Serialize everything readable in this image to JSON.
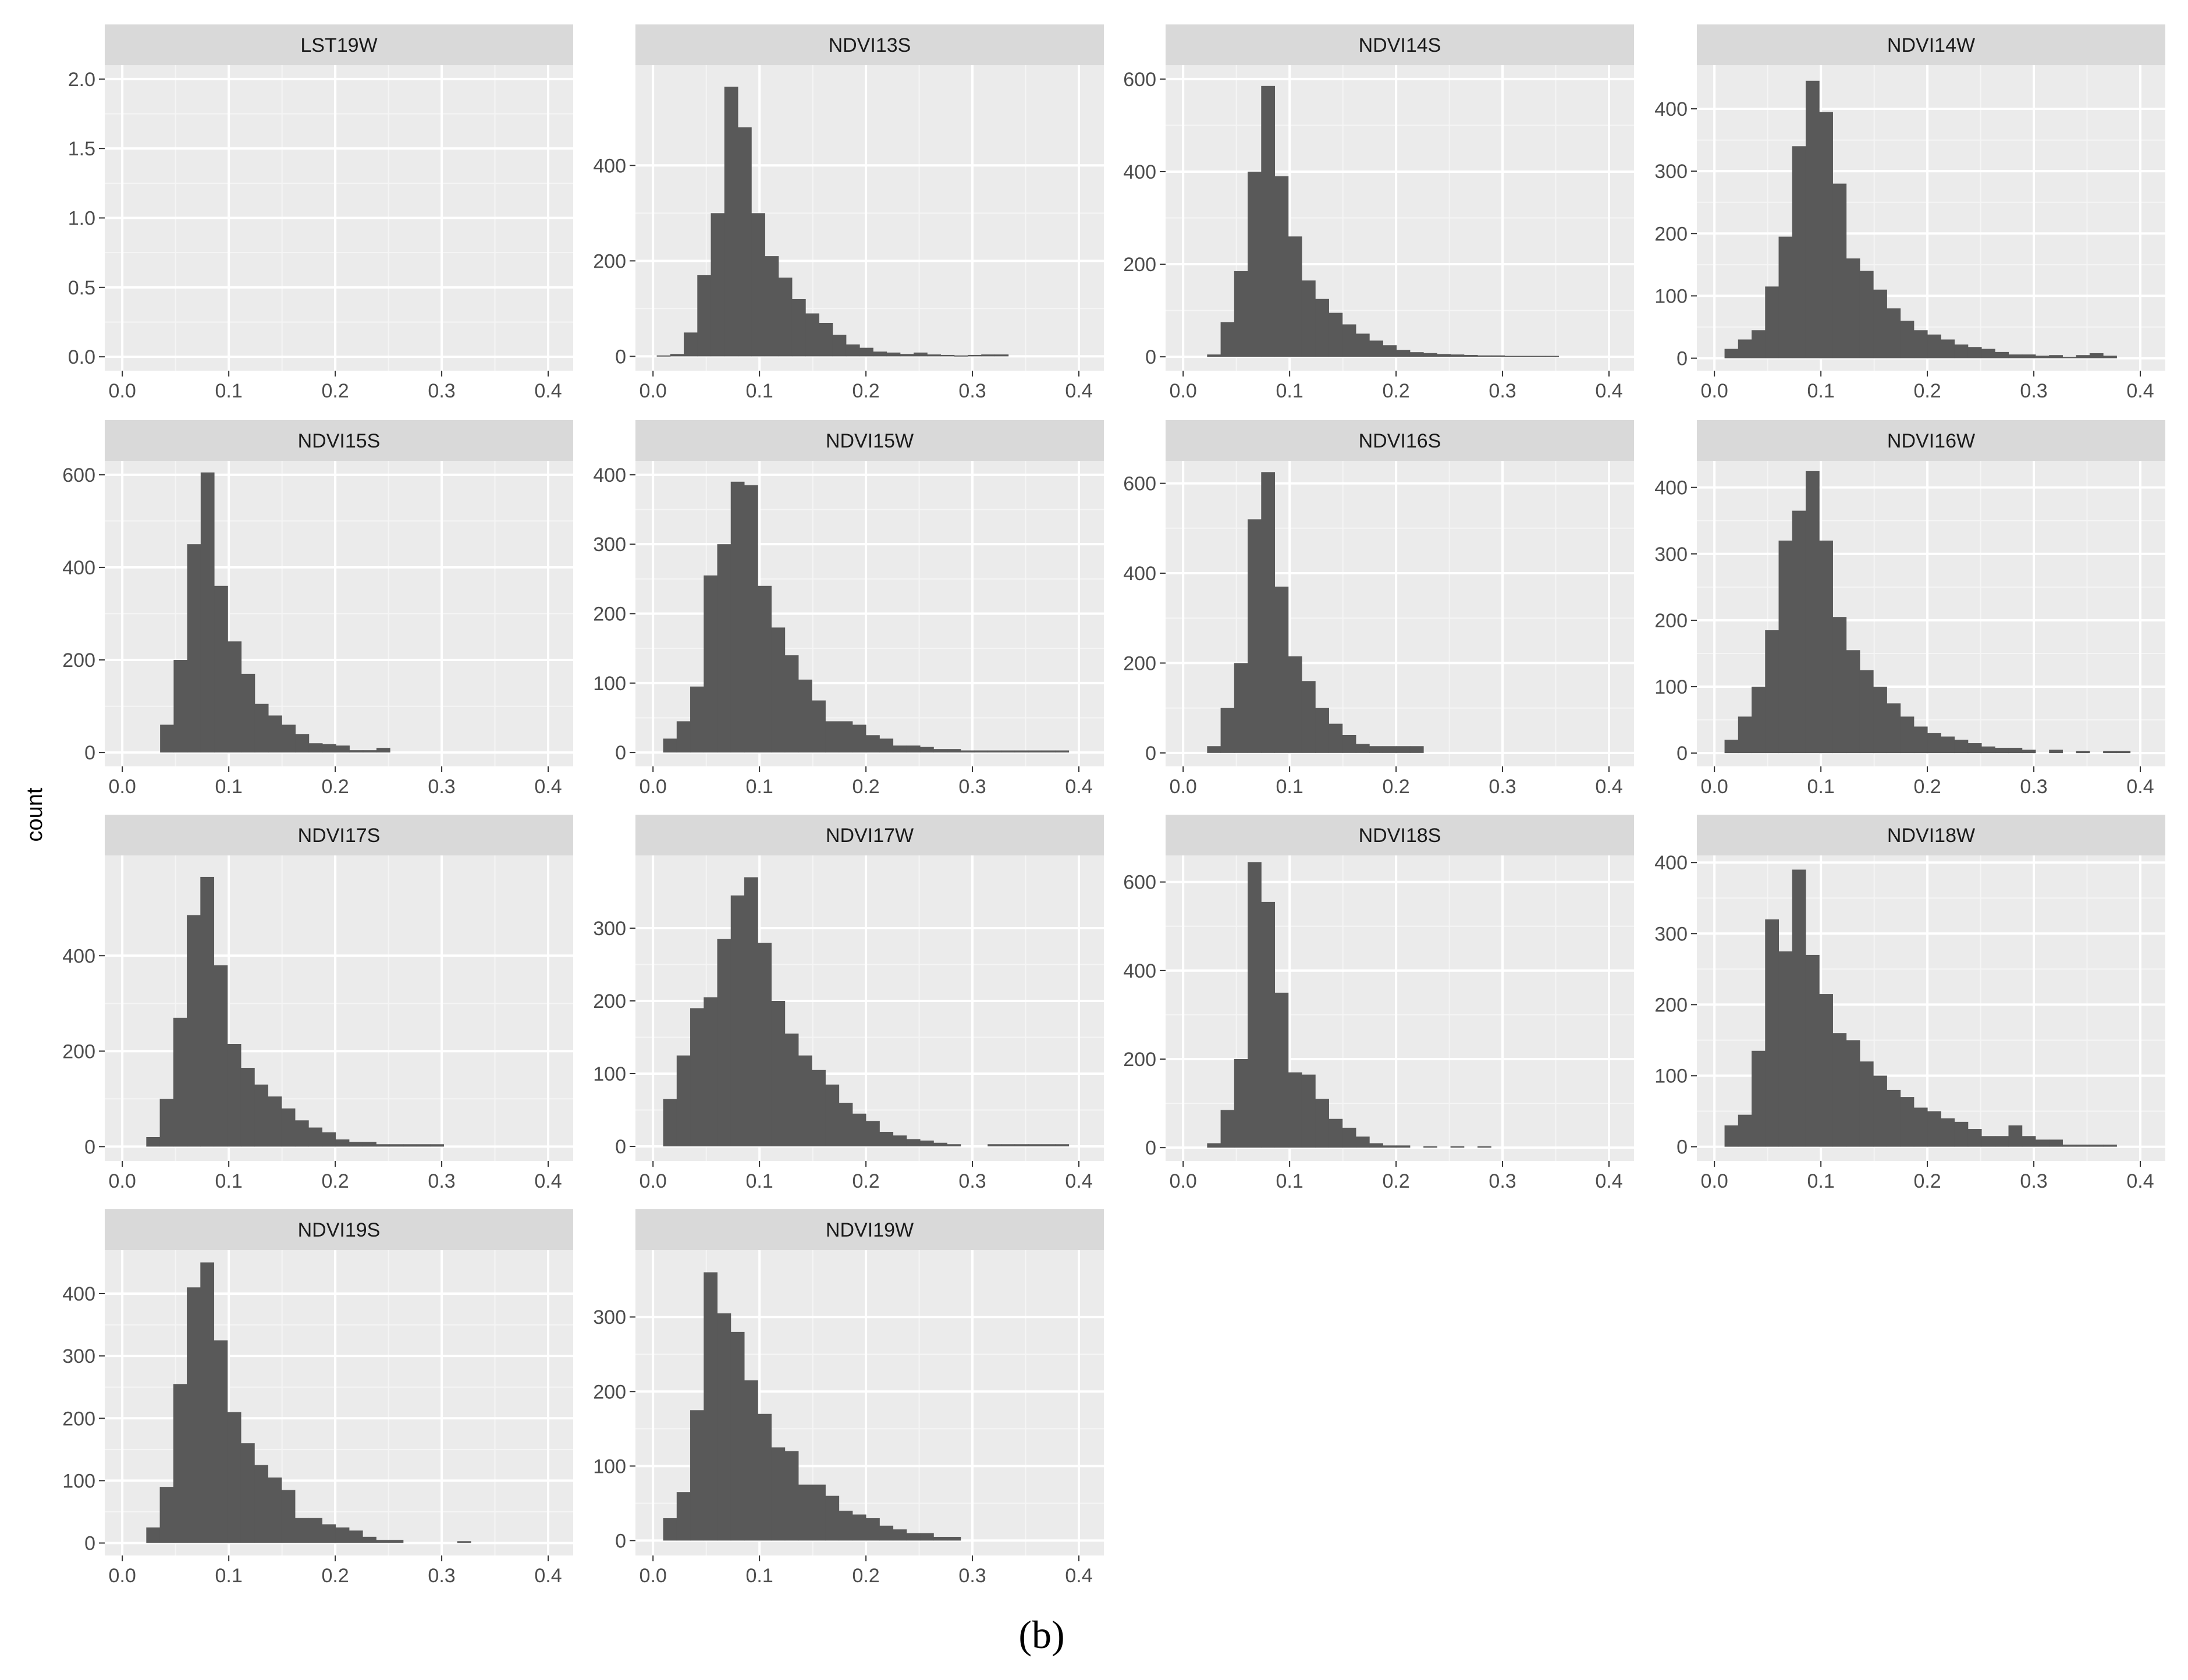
{
  "figure": {
    "caption": "(b)",
    "ylabel": "count"
  },
  "chart_data": [
    {
      "type": "bar",
      "title": "LST19W",
      "xlabel": "",
      "ylabel": "count",
      "x_ticks": [
        0.0,
        0.1,
        0.2,
        0.3,
        0.4
      ],
      "y_ticks": [
        0.0,
        0.5,
        1.0,
        1.5,
        2.0
      ],
      "ylim": [
        -0.1,
        2.1
      ],
      "bin_start": 0.0,
      "bin_width": 0.0127,
      "values": []
    },
    {
      "type": "bar",
      "title": "NDVI13S",
      "xlabel": "",
      "ylabel": "count",
      "x_ticks": [
        0.0,
        0.1,
        0.2,
        0.3,
        0.4
      ],
      "y_ticks": [
        0,
        200,
        400
      ],
      "ylim": [
        -30,
        610
      ],
      "bin_start": 0.0035,
      "bin_width": 0.0127,
      "values": [
        2,
        5,
        50,
        170,
        300,
        565,
        480,
        300,
        210,
        165,
        120,
        90,
        70,
        45,
        25,
        18,
        10,
        8,
        5,
        8,
        4,
        3,
        2,
        3,
        4,
        4
      ]
    },
    {
      "type": "bar",
      "title": "NDVI14S",
      "xlabel": "",
      "ylabel": "count",
      "x_ticks": [
        0.0,
        0.1,
        0.2,
        0.3,
        0.4
      ],
      "y_ticks": [
        0,
        200,
        400,
        600
      ],
      "ylim": [
        -30,
        630
      ],
      "bin_start": 0.0225,
      "bin_width": 0.0127,
      "values": [
        5,
        75,
        185,
        400,
        585,
        390,
        260,
        165,
        125,
        95,
        70,
        50,
        35,
        25,
        15,
        10,
        8,
        6,
        5,
        4,
        3,
        3,
        2,
        2,
        2,
        2
      ]
    },
    {
      "type": "bar",
      "title": "NDVI14W",
      "xlabel": "",
      "ylabel": "count",
      "x_ticks": [
        0.0,
        0.1,
        0.2,
        0.3,
        0.4
      ],
      "y_ticks": [
        0,
        100,
        200,
        300,
        400
      ],
      "ylim": [
        -20,
        470
      ],
      "bin_start": 0.0095,
      "bin_width": 0.0127,
      "values": [
        15,
        30,
        45,
        115,
        195,
        340,
        445,
        395,
        280,
        160,
        140,
        110,
        80,
        60,
        45,
        38,
        30,
        22,
        18,
        15,
        10,
        6,
        6,
        4,
        5,
        2,
        5,
        8,
        4
      ]
    },
    {
      "type": "bar",
      "title": "NDVI15S",
      "xlabel": "",
      "ylabel": "count",
      "x_ticks": [
        0.0,
        0.1,
        0.2,
        0.3,
        0.4
      ],
      "y_ticks": [
        0,
        200,
        400,
        600
      ],
      "ylim": [
        -30,
        630
      ],
      "bin_start": 0.0355,
      "bin_width": 0.0127,
      "values": [
        60,
        200,
        450,
        605,
        360,
        240,
        170,
        105,
        80,
        60,
        40,
        20,
        18,
        15,
        5,
        5,
        10
      ]
    },
    {
      "type": "bar",
      "title": "NDVI15W",
      "xlabel": "",
      "ylabel": "count",
      "x_ticks": [
        0.0,
        0.1,
        0.2,
        0.3,
        0.4
      ],
      "y_ticks": [
        0,
        100,
        200,
        300,
        400
      ],
      "ylim": [
        -20,
        420
      ],
      "bin_start": 0.0095,
      "bin_width": 0.0127,
      "values": [
        20,
        45,
        95,
        255,
        300,
        390,
        385,
        240,
        180,
        140,
        105,
        75,
        45,
        45,
        40,
        25,
        20,
        10,
        10,
        8,
        5,
        5,
        3,
        3,
        3,
        3,
        3,
        3,
        3,
        3
      ]
    },
    {
      "type": "bar",
      "title": "NDVI16S",
      "xlabel": "",
      "ylabel": "count",
      "x_ticks": [
        0.0,
        0.1,
        0.2,
        0.3,
        0.4
      ],
      "y_ticks": [
        0,
        200,
        400,
        600
      ],
      "ylim": [
        -30,
        650
      ],
      "bin_start": 0.0225,
      "bin_width": 0.0127,
      "values": [
        15,
        100,
        200,
        520,
        625,
        370,
        215,
        160,
        100,
        65,
        40,
        20,
        15,
        15,
        15,
        15
      ]
    },
    {
      "type": "bar",
      "title": "NDVI16W",
      "xlabel": "",
      "ylabel": "count",
      "x_ticks": [
        0.0,
        0.1,
        0.2,
        0.3,
        0.4
      ],
      "y_ticks": [
        0,
        100,
        200,
        300,
        400
      ],
      "ylim": [
        -20,
        440
      ],
      "bin_start": 0.0095,
      "bin_width": 0.0127,
      "values": [
        20,
        55,
        100,
        185,
        320,
        365,
        425,
        320,
        205,
        155,
        125,
        100,
        75,
        55,
        40,
        30,
        25,
        20,
        15,
        10,
        8,
        8,
        5,
        0,
        5,
        0,
        3,
        0,
        3,
        3
      ]
    },
    {
      "type": "bar",
      "title": "NDVI17S",
      "xlabel": "",
      "ylabel": "count",
      "x_ticks": [
        0.0,
        0.1,
        0.2,
        0.3,
        0.4
      ],
      "y_ticks": [
        0,
        200,
        400
      ],
      "ylim": [
        -30,
        610
      ],
      "bin_start": 0.0225,
      "bin_width": 0.0127,
      "values": [
        20,
        100,
        270,
        485,
        565,
        380,
        215,
        165,
        130,
        105,
        80,
        55,
        40,
        30,
        15,
        10,
        10,
        5,
        5,
        5,
        5,
        5
      ]
    },
    {
      "type": "bar",
      "title": "NDVI17W",
      "xlabel": "",
      "ylabel": "count",
      "x_ticks": [
        0.0,
        0.1,
        0.2,
        0.3,
        0.4
      ],
      "y_ticks": [
        0,
        100,
        200,
        300
      ],
      "ylim": [
        -20,
        400
      ],
      "bin_start": 0.0095,
      "bin_width": 0.0127,
      "values": [
        65,
        125,
        190,
        205,
        285,
        345,
        370,
        280,
        200,
        155,
        125,
        105,
        85,
        60,
        45,
        35,
        20,
        15,
        10,
        8,
        5,
        3,
        0,
        0,
        3,
        3,
        3,
        3,
        3,
        3
      ]
    },
    {
      "type": "bar",
      "title": "NDVI18S",
      "xlabel": "",
      "ylabel": "count",
      "x_ticks": [
        0.0,
        0.1,
        0.2,
        0.3,
        0.4
      ],
      "y_ticks": [
        0,
        200,
        400,
        600
      ],
      "ylim": [
        -30,
        660
      ],
      "bin_start": 0.0225,
      "bin_width": 0.0127,
      "values": [
        10,
        85,
        200,
        645,
        555,
        350,
        170,
        165,
        110,
        65,
        45,
        25,
        10,
        5,
        5,
        0,
        3,
        0,
        3,
        0,
        3
      ]
    },
    {
      "type": "bar",
      "title": "NDVI18W",
      "xlabel": "",
      "ylabel": "count",
      "x_ticks": [
        0.0,
        0.1,
        0.2,
        0.3,
        0.4
      ],
      "y_ticks": [
        0,
        100,
        200,
        300,
        400
      ],
      "ylim": [
        -20,
        410
      ],
      "bin_start": 0.0095,
      "bin_width": 0.0127,
      "values": [
        30,
        45,
        135,
        320,
        275,
        390,
        270,
        215,
        160,
        150,
        120,
        100,
        80,
        70,
        55,
        50,
        40,
        35,
        25,
        15,
        15,
        30,
        15,
        10,
        10,
        3,
        3,
        3,
        3
      ]
    },
    {
      "type": "bar",
      "title": "NDVI19S",
      "xlabel": "",
      "ylabel": "count",
      "x_ticks": [
        0.0,
        0.1,
        0.2,
        0.3,
        0.4
      ],
      "y_ticks": [
        0,
        100,
        200,
        300,
        400
      ],
      "ylim": [
        -20,
        470
      ],
      "bin_start": 0.0225,
      "bin_width": 0.0127,
      "values": [
        25,
        90,
        255,
        410,
        450,
        325,
        210,
        160,
        125,
        105,
        85,
        40,
        40,
        30,
        25,
        20,
        10,
        5,
        5,
        0,
        0,
        0,
        0,
        3
      ]
    },
    {
      "type": "bar",
      "title": "NDVI19W",
      "xlabel": "",
      "ylabel": "count",
      "x_ticks": [
        0.0,
        0.1,
        0.2,
        0.3,
        0.4
      ],
      "y_ticks": [
        0,
        100,
        200,
        300
      ],
      "ylim": [
        -20,
        390
      ],
      "bin_start": 0.0095,
      "bin_width": 0.0127,
      "values": [
        30,
        65,
        175,
        360,
        305,
        280,
        215,
        170,
        125,
        120,
        75,
        75,
        60,
        40,
        35,
        30,
        20,
        15,
        10,
        10,
        5,
        5
      ]
    }
  ]
}
